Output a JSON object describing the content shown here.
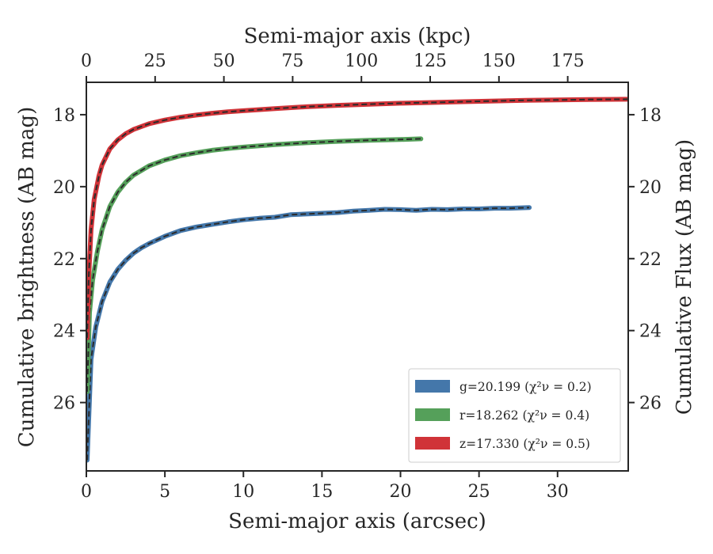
{
  "chart_data": {
    "type": "line",
    "xlabel_bottom": "Semi-major axis (arcsec)",
    "xlabel_top": "Semi-major axis (kpc)",
    "ylabel_left": "Cumulative brightness (AB mag)",
    "ylabel_right": "Cumulative Flux (AB mag)",
    "xlim": [
      0,
      34.5
    ],
    "ylim": [
      27.9,
      17.1
    ],
    "y_inverted": true,
    "x2lim": [
      0,
      197
    ],
    "x_ticks": [
      0,
      5,
      10,
      15,
      20,
      25,
      30
    ],
    "x2_ticks": [
      0,
      25,
      50,
      75,
      100,
      125,
      150,
      175
    ],
    "y_ticks": [
      18,
      20,
      22,
      24,
      26
    ],
    "grid": false,
    "legend_position": "lower-right",
    "series": [
      {
        "name": "g=20.199",
        "chi_label": "(χ²ν = 0.2)",
        "color": "#4477aa",
        "x": [
          0.05,
          0.3,
          0.6,
          1.0,
          1.5,
          2.0,
          2.5,
          3.0,
          3.5,
          4.0,
          5.0,
          6.0,
          7.0,
          8.0,
          9.0,
          10.0,
          11.0,
          12.0,
          13.0,
          14.0,
          15.0,
          16.0,
          17.0,
          18.0,
          19.0,
          20.0,
          21.0,
          22.0,
          23.0,
          24.0,
          25.0,
          26.0,
          27.0,
          28.2
        ],
        "y": [
          27.6,
          24.8,
          23.9,
          23.2,
          22.65,
          22.3,
          22.05,
          21.85,
          21.7,
          21.58,
          21.38,
          21.22,
          21.12,
          21.05,
          20.98,
          20.92,
          20.88,
          20.85,
          20.78,
          20.76,
          20.74,
          20.72,
          20.68,
          20.66,
          20.63,
          20.64,
          20.66,
          20.63,
          20.64,
          20.62,
          20.62,
          20.6,
          20.6,
          20.58
        ]
      },
      {
        "name": "r=18.262",
        "chi_label": "(χ²ν = 0.4)",
        "color": "#55a05a",
        "x": [
          0.05,
          0.2,
          0.4,
          0.7,
          1.0,
          1.5,
          2.0,
          2.5,
          3.0,
          4.0,
          5.0,
          6.0,
          7.0,
          8.0,
          9.0,
          10.0,
          12.0,
          14.0,
          16.0,
          18.0,
          20.0,
          21.3
        ],
        "y": [
          25.7,
          23.5,
          22.6,
          21.8,
          21.2,
          20.55,
          20.15,
          19.88,
          19.68,
          19.42,
          19.26,
          19.14,
          19.06,
          18.99,
          18.94,
          18.9,
          18.83,
          18.78,
          18.74,
          18.71,
          18.69,
          18.67
        ]
      },
      {
        "name": "z=17.330",
        "chi_label": "(χ²ν = 0.5)",
        "color": "#d03338",
        "x": [
          0.05,
          0.15,
          0.3,
          0.5,
          0.8,
          1.0,
          1.5,
          2.0,
          2.5,
          3.0,
          4.0,
          5.0,
          6.0,
          7.0,
          8.0,
          9.0,
          10.0,
          12.0,
          14.0,
          16.0,
          18.0,
          20.0,
          22.0,
          24.0,
          26.0,
          28.0,
          30.0,
          32.0,
          34.5
        ],
        "y": [
          24.2,
          22.5,
          21.2,
          20.35,
          19.7,
          19.4,
          18.95,
          18.7,
          18.53,
          18.41,
          18.25,
          18.15,
          18.07,
          18.01,
          17.96,
          17.92,
          17.89,
          17.83,
          17.78,
          17.74,
          17.71,
          17.68,
          17.66,
          17.64,
          17.62,
          17.6,
          17.59,
          17.58,
          17.57
        ]
      }
    ]
  }
}
